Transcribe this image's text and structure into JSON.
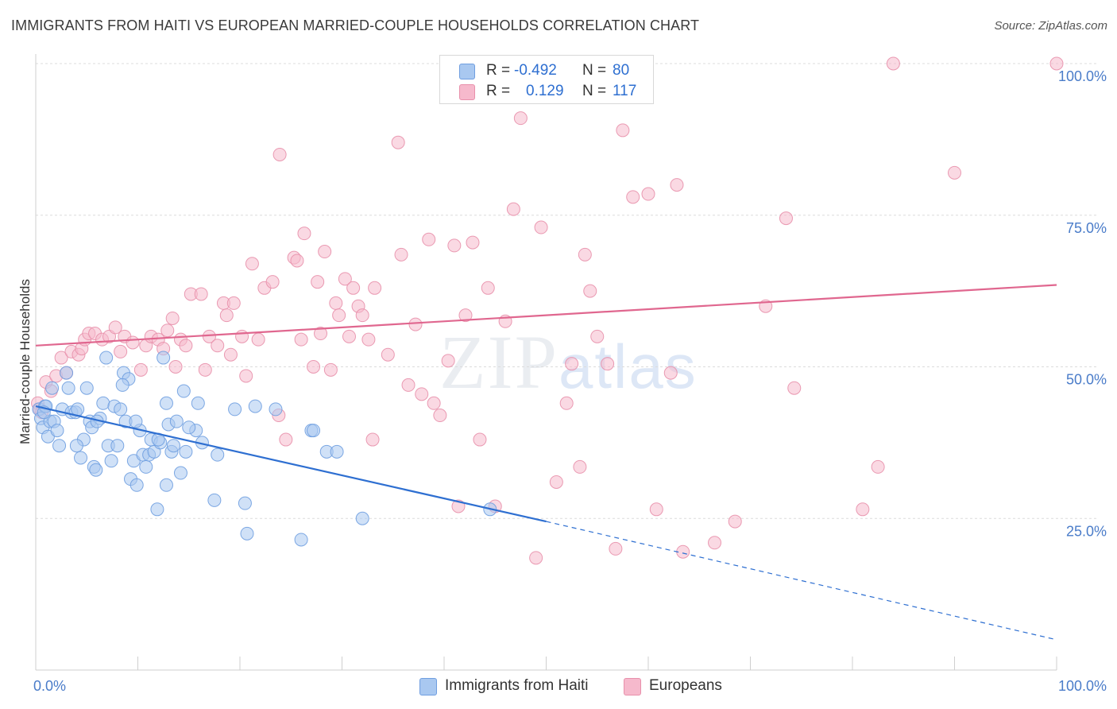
{
  "title": "IMMIGRANTS FROM HAITI VS EUROPEAN MARRIED-COUPLE HOUSEHOLDS CORRELATION CHART",
  "source": "Source: ZipAtlas.com",
  "watermark": {
    "zip": "ZIP",
    "atlas": "atlas"
  },
  "legend_top": [
    {
      "r_label": "R =",
      "r_value": "-0.492",
      "n_label": "N =",
      "n_value": "80",
      "color": "#a9c8f0",
      "border": "#6f9ee0"
    },
    {
      "r_label": "R =",
      "r_value": "0.129",
      "n_label": "N =",
      "n_value": "117",
      "color": "#f6b9cc",
      "border": "#e890ab"
    }
  ],
  "chart_data": {
    "type": "scatter",
    "title": "IMMIGRANTS FROM HAITI VS EUROPEAN MARRIED-COUPLE HOUSEHOLDS CORRELATION CHART",
    "xlabel": "",
    "ylabel": "Married-couple Households",
    "xlim": [
      0,
      100
    ],
    "ylim": [
      0,
      100
    ],
    "x_tick_labels": [
      "0.0%",
      "100.0%"
    ],
    "y_ticks": [
      25,
      50,
      75,
      100
    ],
    "y_tick_labels": [
      "25.0%",
      "50.0%",
      "75.0%",
      "100.0%"
    ],
    "grid": true,
    "legend": "bottom",
    "series": [
      {
        "name": "Immigrants from Haiti",
        "color": "#6f9ee0",
        "fill": "#a9c8f0",
        "trend": {
          "x0": 0,
          "y0": 43.5,
          "x1": 50,
          "y1": 24.5,
          "dash_x1": 100,
          "dash_y1": 5
        },
        "points": [
          [
            0.3,
            43
          ],
          [
            0.5,
            41.5
          ],
          [
            0.7,
            40
          ],
          [
            0.9,
            43.5
          ],
          [
            1.2,
            38.5
          ],
          [
            1.4,
            41
          ],
          [
            1.6,
            46.5
          ],
          [
            1.8,
            41
          ],
          [
            2.1,
            39.5
          ],
          [
            2.3,
            37
          ],
          [
            2.6,
            43
          ],
          [
            3.0,
            49
          ],
          [
            3.2,
            46.5
          ],
          [
            3.5,
            42.5
          ],
          [
            3.9,
            42.5
          ],
          [
            4.1,
            43
          ],
          [
            4.4,
            35
          ],
          [
            4.7,
            38
          ],
          [
            5.0,
            46.5
          ],
          [
            5.3,
            41
          ],
          [
            5.5,
            40
          ],
          [
            5.7,
            33.5
          ],
          [
            5.9,
            33
          ],
          [
            6.3,
            41.5
          ],
          [
            6.6,
            44
          ],
          [
            6.9,
            51.5
          ],
          [
            7.1,
            37
          ],
          [
            7.4,
            34.5
          ],
          [
            7.7,
            43.5
          ],
          [
            8.0,
            37
          ],
          [
            8.3,
            43
          ],
          [
            8.6,
            49
          ],
          [
            8.8,
            41
          ],
          [
            9.1,
            48
          ],
          [
            9.3,
            31.5
          ],
          [
            9.6,
            34.5
          ],
          [
            9.9,
            30.5
          ],
          [
            10.2,
            39.5
          ],
          [
            10.5,
            35.5
          ],
          [
            10.8,
            33.5
          ],
          [
            11.1,
            35.5
          ],
          [
            11.3,
            38
          ],
          [
            11.6,
            36
          ],
          [
            11.9,
            26.5
          ],
          [
            12.2,
            37.5
          ],
          [
            12.5,
            51.5
          ],
          [
            12.8,
            30.5
          ],
          [
            12.8,
            44
          ],
          [
            13.0,
            40.5
          ],
          [
            13.3,
            36
          ],
          [
            13.5,
            37
          ],
          [
            13.8,
            41
          ],
          [
            14.2,
            32.5
          ],
          [
            14.5,
            46
          ],
          [
            14.7,
            36
          ],
          [
            15.7,
            39.5
          ],
          [
            15.9,
            44
          ],
          [
            16.3,
            37.5
          ],
          [
            17.5,
            28
          ],
          [
            17.8,
            35.5
          ],
          [
            19.5,
            43
          ],
          [
            20.5,
            27.5
          ],
          [
            20.7,
            22.5
          ],
          [
            21.5,
            43.5
          ],
          [
            23.5,
            43
          ],
          [
            27.0,
            39.5
          ],
          [
            27.2,
            39.5
          ],
          [
            26.0,
            21.5
          ],
          [
            28.5,
            36
          ],
          [
            29.5,
            36
          ],
          [
            32.0,
            25
          ],
          [
            44.5,
            26.5
          ],
          [
            1.0,
            43.5
          ],
          [
            0.8,
            42.5
          ],
          [
            4.0,
            37
          ],
          [
            8.5,
            47
          ],
          [
            12.0,
            38
          ],
          [
            9.8,
            41
          ],
          [
            6.0,
            41
          ],
          [
            15.0,
            40
          ]
        ]
      },
      {
        "name": "Europeans",
        "color": "#e890ab",
        "fill": "#f6b9cc",
        "trend": {
          "x0": 0,
          "y0": 53.5,
          "x1": 100,
          "y1": 63.5
        },
        "points": [
          [
            0.2,
            44
          ],
          [
            0.4,
            43
          ],
          [
            0.6,
            42.5
          ],
          [
            1.0,
            47.5
          ],
          [
            1.5,
            46
          ],
          [
            2.0,
            48.5
          ],
          [
            2.5,
            51.5
          ],
          [
            3.0,
            49
          ],
          [
            3.5,
            52.5
          ],
          [
            4.2,
            52
          ],
          [
            4.5,
            53
          ],
          [
            4.8,
            54.5
          ],
          [
            5.2,
            55.5
          ],
          [
            5.8,
            55.5
          ],
          [
            6.5,
            54.5
          ],
          [
            7.2,
            55
          ],
          [
            7.8,
            56.5
          ],
          [
            8.3,
            52.5
          ],
          [
            8.7,
            55
          ],
          [
            9.5,
            54
          ],
          [
            10.3,
            49.5
          ],
          [
            10.8,
            53.5
          ],
          [
            11.3,
            55
          ],
          [
            12.0,
            54.5
          ],
          [
            12.5,
            53
          ],
          [
            12.9,
            56
          ],
          [
            13.4,
            58
          ],
          [
            13.7,
            50
          ],
          [
            14.2,
            54.5
          ],
          [
            14.7,
            53.5
          ],
          [
            15.2,
            62
          ],
          [
            16.2,
            62
          ],
          [
            16.6,
            49.5
          ],
          [
            17.0,
            55
          ],
          [
            17.8,
            53.5
          ],
          [
            18.4,
            60.5
          ],
          [
            18.7,
            58.5
          ],
          [
            19.1,
            52
          ],
          [
            19.4,
            60.5
          ],
          [
            20.2,
            55
          ],
          [
            20.6,
            48.5
          ],
          [
            21.2,
            67
          ],
          [
            21.8,
            54.5
          ],
          [
            22.4,
            63
          ],
          [
            23.2,
            64
          ],
          [
            23.8,
            42
          ],
          [
            24.5,
            38
          ],
          [
            23.9,
            85
          ],
          [
            25.3,
            68
          ],
          [
            25.6,
            67.5
          ],
          [
            26.0,
            54.5
          ],
          [
            26.3,
            72
          ],
          [
            27.2,
            50
          ],
          [
            27.6,
            64
          ],
          [
            27.9,
            55.5
          ],
          [
            28.3,
            69
          ],
          [
            28.9,
            49.5
          ],
          [
            29.4,
            60.5
          ],
          [
            29.7,
            58.5
          ],
          [
            30.3,
            64.5
          ],
          [
            30.7,
            55
          ],
          [
            31.1,
            63
          ],
          [
            31.6,
            60
          ],
          [
            32.0,
            58.5
          ],
          [
            32.6,
            54.5
          ],
          [
            33.0,
            38
          ],
          [
            33.2,
            63
          ],
          [
            34.5,
            52
          ],
          [
            35.5,
            87
          ],
          [
            35.8,
            68.5
          ],
          [
            36.5,
            47
          ],
          [
            37.2,
            57
          ],
          [
            37.8,
            45.5
          ],
          [
            38.5,
            71
          ],
          [
            39.0,
            44
          ],
          [
            39.6,
            42
          ],
          [
            40.2,
            100
          ],
          [
            40.4,
            51
          ],
          [
            41.0,
            70
          ],
          [
            41.4,
            27
          ],
          [
            42.1,
            58.5
          ],
          [
            42.8,
            70.5
          ],
          [
            43.5,
            38
          ],
          [
            44.3,
            63
          ],
          [
            45.0,
            27
          ],
          [
            46.0,
            57.5
          ],
          [
            46.8,
            76
          ],
          [
            47.5,
            91
          ],
          [
            49.0,
            18.5
          ],
          [
            49.5,
            73
          ],
          [
            50.2,
            97.5
          ],
          [
            51.0,
            31
          ],
          [
            52.0,
            44
          ],
          [
            52.5,
            50.5
          ],
          [
            53.3,
            33.5
          ],
          [
            53.8,
            68.5
          ],
          [
            54.3,
            62.5
          ],
          [
            55.0,
            55
          ],
          [
            56.0,
            50.5
          ],
          [
            56.8,
            20
          ],
          [
            57.5,
            89
          ],
          [
            58.5,
            78
          ],
          [
            60.0,
            78.5
          ],
          [
            60.8,
            26.5
          ],
          [
            62.2,
            49
          ],
          [
            62.8,
            80
          ],
          [
            63.4,
            19.5
          ],
          [
            66.5,
            21
          ],
          [
            68.5,
            24.5
          ],
          [
            71.5,
            60
          ],
          [
            73.5,
            74.5
          ],
          [
            74.3,
            46.5
          ],
          [
            81.0,
            26.5
          ],
          [
            82.5,
            33.5
          ],
          [
            84.0,
            100
          ],
          [
            90.0,
            82
          ],
          [
            100.0,
            100
          ]
        ]
      }
    ]
  }
}
